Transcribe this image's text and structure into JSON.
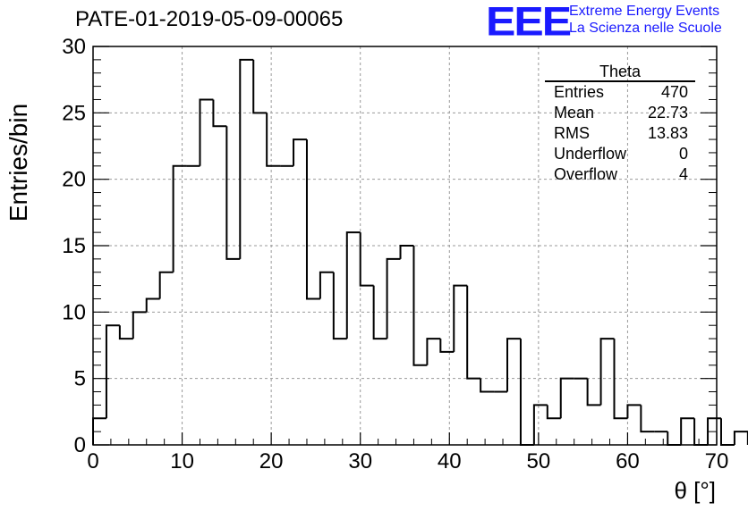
{
  "chart_data": {
    "type": "bar",
    "title": "PATE-01-2019-05-09-00065",
    "xlabel": "θ [°]",
    "ylabel": "Entries/bin",
    "xlim": [
      0,
      70
    ],
    "ylim": [
      0,
      30
    ],
    "grid": true,
    "bin_width": 1.5,
    "x_start": 0,
    "values": [
      2,
      9,
      8,
      10,
      11,
      13,
      21,
      21,
      26,
      24,
      14,
      29,
      25,
      21,
      21,
      23,
      11,
      13,
      8,
      16,
      12,
      8,
      14,
      15,
      6,
      8,
      7,
      12,
      5,
      4,
      4,
      8,
      0,
      3,
      2,
      5,
      5,
      3,
      8,
      2,
      3,
      1,
      1,
      0,
      2,
      0,
      2,
      0,
      1
    ],
    "x_ticks": [
      "0",
      "10",
      "20",
      "30",
      "40",
      "50",
      "60",
      "70"
    ],
    "y_ticks": [
      "0",
      "5",
      "10",
      "15",
      "20",
      "25",
      "30"
    ],
    "stats": {
      "title": "Theta",
      "rows": [
        {
          "label": "Entries",
          "value": "470"
        },
        {
          "label": "Mean",
          "value": "22.73"
        },
        {
          "label": "RMS",
          "value": "13.83"
        },
        {
          "label": "Underflow",
          "value": "0"
        },
        {
          "label": "Overflow",
          "value": "4"
        }
      ]
    }
  },
  "logo": {
    "mark": "EEE",
    "line1": "Extreme Energy Events",
    "line2": "La Scienza nelle Scuole",
    "color": "#1a1aff"
  }
}
